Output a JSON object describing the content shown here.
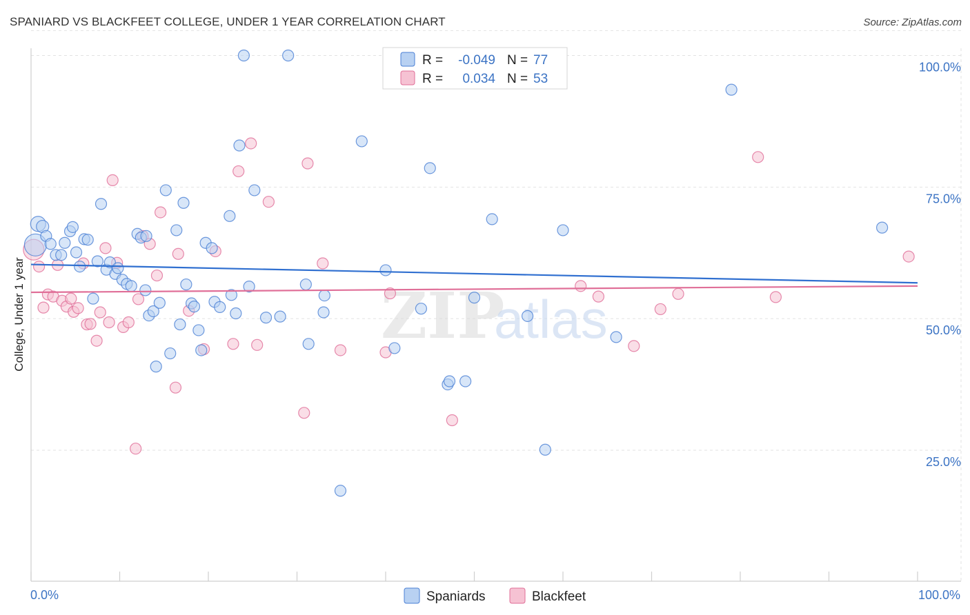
{
  "header": {
    "title": "SPANIARD VS BLACKFEET COLLEGE, UNDER 1 YEAR CORRELATION CHART",
    "source": "Source: ZipAtlas.com"
  },
  "colors": {
    "blue": "#4a7fd4",
    "blue_fill": "#b8d1f2",
    "blue_line": "#2f6fd0",
    "pink": "#e06d97",
    "pink_fill": "#f6c2d3",
    "pink_line": "#e06f98",
    "axis_label": "#3b73c4",
    "grid": "#e2e2e2"
  },
  "legend": {
    "rows": [
      {
        "r_label": "R =",
        "r_value": "-0.049",
        "n_label": "N =",
        "n_value": "77",
        "series": "Spaniards"
      },
      {
        "r_label": "R =",
        "r_value": "0.034",
        "n_label": "N =",
        "n_value": "53",
        "series": "Blackfeet"
      }
    ]
  },
  "watermark": {
    "zip": "ZIP",
    "atlas": "atlas"
  },
  "chart_data": {
    "type": "scatter",
    "title": "SPANIARD VS BLACKFEET COLLEGE, UNDER 1 YEAR CORRELATION CHART",
    "xlabel": "",
    "ylabel": "College, Under 1 year",
    "xlim": [
      0,
      100
    ],
    "ylim": [
      0,
      105
    ],
    "x_tick_labels": [
      "0.0%",
      "100.0%"
    ],
    "y_ticks": [
      25,
      50,
      75,
      100
    ],
    "y_tick_labels": [
      "25.0%",
      "50.0%",
      "75.0%",
      "100.0%"
    ],
    "grid": true,
    "legend_position": "top-center",
    "series": [
      {
        "name": "Spaniards",
        "color": "#4a7fd4",
        "trend": {
          "x0": 0,
          "y0": 60.3,
          "x1": 100,
          "y1": 56.8
        },
        "points": [
          [
            0.5,
            64.0,
            16
          ],
          [
            0.8,
            68.0,
            11
          ],
          [
            1.3,
            67.5,
            9
          ],
          [
            1.7,
            65.7,
            8
          ],
          [
            2.2,
            64.2,
            8
          ],
          [
            2.8,
            62.1,
            8
          ],
          [
            3.4,
            62.1,
            8
          ],
          [
            3.8,
            64.4,
            8
          ],
          [
            4.4,
            66.6,
            8
          ],
          [
            4.7,
            67.4,
            8
          ],
          [
            5.1,
            62.6,
            8
          ],
          [
            5.5,
            59.9,
            8
          ],
          [
            6.0,
            65.1,
            8
          ],
          [
            6.4,
            65.0,
            8
          ],
          [
            7.0,
            53.8,
            8
          ],
          [
            7.5,
            60.9,
            8
          ],
          [
            7.9,
            71.8,
            8
          ],
          [
            8.5,
            59.3,
            8
          ],
          [
            8.9,
            60.7,
            8
          ],
          [
            9.5,
            58.5,
            8
          ],
          [
            9.8,
            59.6,
            8
          ],
          [
            10.3,
            57.4,
            8
          ],
          [
            10.8,
            56.6,
            8
          ],
          [
            11.3,
            56.2,
            8
          ],
          [
            12.0,
            66.1,
            8
          ],
          [
            12.4,
            65.4,
            8
          ],
          [
            12.9,
            55.4,
            8
          ],
          [
            13.3,
            50.6,
            8
          ],
          [
            13.8,
            51.4,
            8
          ],
          [
            14.1,
            40.9,
            8
          ],
          [
            14.5,
            53.0,
            8
          ],
          [
            15.2,
            74.4,
            8
          ],
          [
            15.7,
            43.4,
            8
          ],
          [
            16.4,
            66.8,
            8
          ],
          [
            16.8,
            48.9,
            8
          ],
          [
            17.2,
            72.0,
            8
          ],
          [
            17.5,
            56.5,
            8
          ],
          [
            18.1,
            52.9,
            8
          ],
          [
            18.4,
            52.3,
            8
          ],
          [
            18.9,
            47.8,
            8
          ],
          [
            19.2,
            44.0,
            8
          ],
          [
            19.7,
            64.4,
            8
          ],
          [
            20.4,
            63.4,
            8
          ],
          [
            20.7,
            53.2,
            8
          ],
          [
            21.3,
            52.2,
            8
          ],
          [
            22.4,
            69.5,
            8
          ],
          [
            22.6,
            54.5,
            8
          ],
          [
            23.1,
            51.0,
            8
          ],
          [
            23.5,
            82.9,
            8
          ],
          [
            24.0,
            100.0,
            8
          ],
          [
            24.6,
            56.1,
            8
          ],
          [
            25.2,
            74.4,
            8
          ],
          [
            26.5,
            50.2,
            8
          ],
          [
            28.1,
            50.4,
            8
          ],
          [
            29.0,
            100.0,
            8
          ],
          [
            31.0,
            56.5,
            8
          ],
          [
            31.3,
            45.2,
            8
          ],
          [
            33.0,
            51.2,
            8
          ],
          [
            33.1,
            54.4,
            8
          ],
          [
            34.9,
            17.3,
            8
          ],
          [
            37.3,
            83.7,
            8
          ],
          [
            40.0,
            59.2,
            8
          ],
          [
            41.0,
            44.4,
            8
          ],
          [
            44.0,
            51.9,
            8
          ],
          [
            45.0,
            78.6,
            8
          ],
          [
            47.0,
            37.5,
            8
          ],
          [
            47.2,
            38.1,
            8
          ],
          [
            49.0,
            38.1,
            8
          ],
          [
            50.0,
            54.0,
            8
          ],
          [
            52.0,
            68.9,
            8
          ],
          [
            56.0,
            50.5,
            8
          ],
          [
            58.0,
            25.1,
            8
          ],
          [
            60.0,
            66.8,
            8
          ],
          [
            66.0,
            46.5,
            8
          ],
          [
            79.0,
            93.5,
            8
          ],
          [
            96.0,
            67.3,
            8
          ],
          [
            13.0,
            65.7,
            8
          ]
        ]
      },
      {
        "name": "Blackfeet",
        "color": "#e06d97",
        "trend": {
          "x0": 0,
          "y0": 55.0,
          "x1": 100,
          "y1": 56.2
        },
        "points": [
          [
            0.3,
            63.1,
            15
          ],
          [
            0.9,
            59.9,
            8
          ],
          [
            1.4,
            52.1,
            8
          ],
          [
            1.9,
            54.6,
            8
          ],
          [
            2.5,
            54.2,
            8
          ],
          [
            3.0,
            60.2,
            8
          ],
          [
            3.5,
            53.4,
            8
          ],
          [
            4.0,
            52.3,
            8
          ],
          [
            4.5,
            53.8,
            8
          ],
          [
            4.8,
            51.3,
            8
          ],
          [
            5.3,
            52.0,
            8
          ],
          [
            5.9,
            60.5,
            8
          ],
          [
            6.3,
            48.9,
            8
          ],
          [
            6.7,
            49.0,
            8
          ],
          [
            7.4,
            45.8,
            8
          ],
          [
            7.8,
            51.2,
            8
          ],
          [
            8.4,
            63.4,
            8
          ],
          [
            8.8,
            49.3,
            8
          ],
          [
            9.2,
            76.3,
            8
          ],
          [
            9.7,
            60.6,
            8
          ],
          [
            10.4,
            48.4,
            8
          ],
          [
            11.0,
            49.3,
            8
          ],
          [
            11.8,
            25.3,
            8
          ],
          [
            12.1,
            53.7,
            8
          ],
          [
            12.6,
            65.7,
            8
          ],
          [
            13.4,
            64.2,
            8
          ],
          [
            14.2,
            58.2,
            8
          ],
          [
            14.6,
            70.2,
            8
          ],
          [
            16.3,
            36.9,
            8
          ],
          [
            16.6,
            62.3,
            8
          ],
          [
            17.8,
            51.5,
            8
          ],
          [
            19.5,
            44.2,
            8
          ],
          [
            20.8,
            62.8,
            8
          ],
          [
            22.8,
            45.2,
            8
          ],
          [
            23.4,
            78.0,
            8
          ],
          [
            24.8,
            83.3,
            8
          ],
          [
            25.5,
            45.0,
            8
          ],
          [
            26.8,
            72.2,
            8
          ],
          [
            30.8,
            32.1,
            8
          ],
          [
            31.2,
            79.5,
            8
          ],
          [
            32.9,
            60.5,
            8
          ],
          [
            34.9,
            44.0,
            8
          ],
          [
            40.0,
            43.6,
            8
          ],
          [
            40.5,
            54.8,
            8
          ],
          [
            47.5,
            30.7,
            8
          ],
          [
            62.0,
            56.2,
            8
          ],
          [
            64.0,
            54.2,
            8
          ],
          [
            68.0,
            44.8,
            8
          ],
          [
            71.0,
            51.8,
            8
          ],
          [
            73.0,
            54.7,
            8
          ],
          [
            82.0,
            80.7,
            8
          ],
          [
            84.0,
            54.1,
            8
          ],
          [
            99.0,
            61.8,
            8
          ]
        ]
      }
    ]
  },
  "bottom_legend": {
    "items": [
      {
        "label": "Spaniards"
      },
      {
        "label": "Blackfeet"
      }
    ]
  }
}
